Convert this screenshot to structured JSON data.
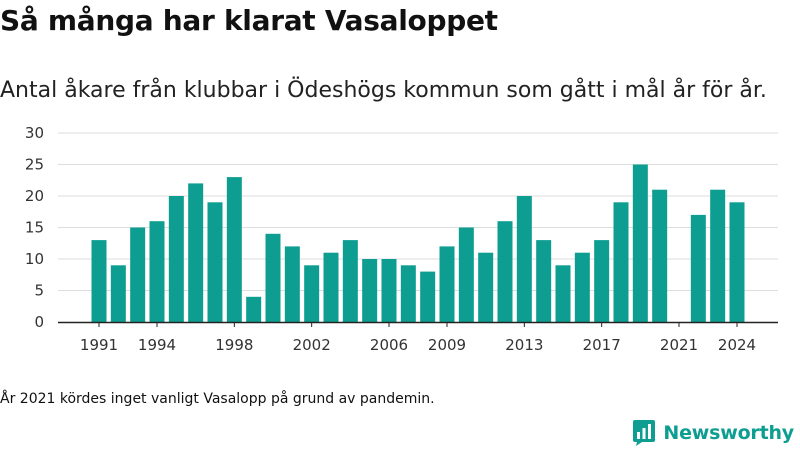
{
  "title": "Så många har klarat Vasaloppet",
  "subtitle": "Antal åkare från klubbar i Ödeshögs kommun som gått i mål år för år.",
  "note": "År 2021 kördes inget vanligt Vasalopp på grund av pandemin.",
  "brand": {
    "name": "Newsworthy",
    "icon": "newsworthy-logo-icon"
  },
  "colors": {
    "bar": "#0e9e91",
    "grid": "#dddddd",
    "axis": "#222222"
  },
  "chart_data": {
    "type": "bar",
    "categories": [
      1991,
      1992,
      1993,
      1994,
      1995,
      1996,
      1997,
      1998,
      1999,
      2000,
      2001,
      2002,
      2003,
      2004,
      2005,
      2006,
      2007,
      2008,
      2009,
      2010,
      2011,
      2012,
      2013,
      2014,
      2015,
      2016,
      2017,
      2018,
      2019,
      2020,
      2021,
      2022,
      2023,
      2024
    ],
    "values": [
      13,
      9,
      15,
      16,
      20,
      22,
      19,
      23,
      4,
      14,
      12,
      9,
      11,
      13,
      10,
      10,
      9,
      8,
      12,
      15,
      11,
      16,
      20,
      13,
      9,
      11,
      13,
      19,
      25,
      21,
      null,
      17,
      21,
      19
    ],
    "x_tick_labels": [
      "1991",
      "1994",
      "1998",
      "2002",
      "2006",
      "2009",
      "2013",
      "2017",
      "2021",
      "2024"
    ],
    "y_ticks": [
      0,
      5,
      10,
      15,
      20,
      25,
      30
    ],
    "ylim": [
      0,
      30
    ],
    "grid": true,
    "xlabel": "",
    "ylabel": ""
  }
}
